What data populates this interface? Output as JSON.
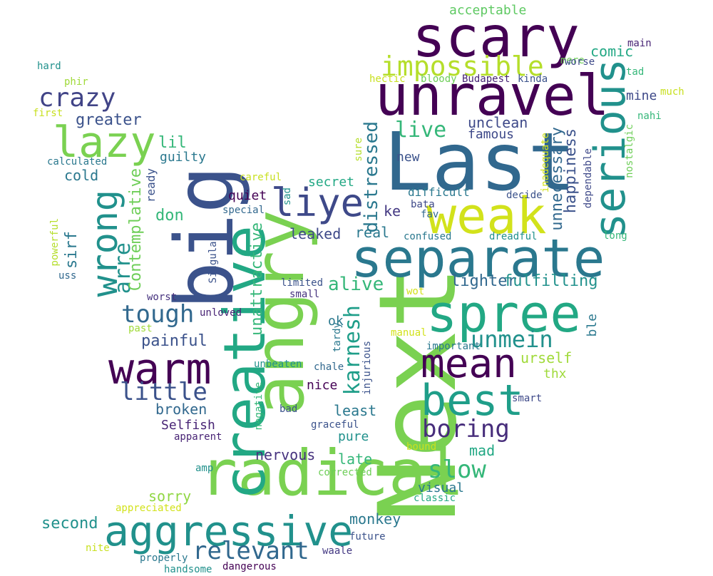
{
  "words": [
    {
      "text": "Next",
      "color": "#7ad151",
      "vertical": true
    },
    {
      "text": "Last",
      "color": "#31688e",
      "vertical": false
    },
    {
      "text": "big",
      "color": "#3b528b",
      "vertical": true
    },
    {
      "text": "angry",
      "color": "#7ad151",
      "vertical": true
    },
    {
      "text": "radical",
      "color": "#7ad151",
      "vertical": false
    },
    {
      "text": "creative",
      "color": "#22a884",
      "vertical": true
    },
    {
      "text": "separate",
      "color": "#2a788e",
      "vertical": false
    },
    {
      "text": "unravel",
      "color": "#440154",
      "vertical": false
    },
    {
      "text": "scary",
      "color": "#440154",
      "vertical": false
    },
    {
      "text": "spree",
      "color": "#22a884",
      "vertical": false
    },
    {
      "text": "weak",
      "color": "#d2e21b",
      "vertical": false
    },
    {
      "text": "serious",
      "color": "#21918c",
      "vertical": true
    },
    {
      "text": "aggressive",
      "color": "#21918c",
      "vertical": false
    },
    {
      "text": "lazy",
      "color": "#7ad151",
      "vertical": false
    },
    {
      "text": "wrong",
      "color": "#21918c",
      "vertical": true
    },
    {
      "text": "warm",
      "color": "#440154",
      "vertical": false
    },
    {
      "text": "mean",
      "color": "#440154",
      "vertical": false
    },
    {
      "text": "best",
      "color": "#1f9e89",
      "vertical": false
    },
    {
      "text": "liye",
      "color": "#3e4989",
      "vertical": false
    },
    {
      "text": "impossible",
      "color": "#b5de2b",
      "vertical": false
    },
    {
      "text": "crazy",
      "color": "#414487",
      "vertical": false
    },
    {
      "text": "boring",
      "color": "#472d7b",
      "vertical": false
    },
    {
      "text": "tough",
      "color": "#31688e",
      "vertical": false
    },
    {
      "text": "relevant",
      "color": "#31688e",
      "vertical": false
    },
    {
      "text": "slow",
      "color": "#35b779",
      "vertical": false
    },
    {
      "text": "unmein",
      "color": "#21918c",
      "vertical": false
    },
    {
      "text": "little",
      "color": "#3b528b",
      "vertical": false
    },
    {
      "text": "live",
      "color": "#35b779",
      "vertical": false
    },
    {
      "text": "alive",
      "color": "#35b779",
      "vertical": false
    },
    {
      "text": "arre",
      "color": "#21918c",
      "vertical": true
    },
    {
      "text": "karnesh",
      "color": "#1f9e89",
      "vertical": true
    },
    {
      "text": "distressed",
      "color": "#2a788e",
      "vertical": true
    },
    {
      "text": "unattractive",
      "color": "#35b779",
      "vertical": true
    },
    {
      "text": "Contemplative",
      "color": "#6ece58",
      "vertical": true
    },
    {
      "text": "happiness",
      "color": "#3b528b",
      "vertical": true
    },
    {
      "text": "unnecessary",
      "color": "#31688e",
      "vertical": true
    },
    {
      "text": "comic",
      "color": "#22a884",
      "vertical": false
    },
    {
      "text": "unclean",
      "color": "#3e4989",
      "vertical": false
    },
    {
      "text": "lighter",
      "color": "#31688e",
      "vertical": false
    },
    {
      "text": "fulfilling",
      "color": "#21918c",
      "vertical": false
    },
    {
      "text": "painful",
      "color": "#3b528b",
      "vertical": false
    },
    {
      "text": "greater",
      "color": "#3b528b",
      "vertical": false
    },
    {
      "text": "leaked",
      "color": "#3e4989",
      "vertical": false
    },
    {
      "text": "real",
      "color": "#2a788e",
      "vertical": false
    },
    {
      "text": "ke",
      "color": "#443983",
      "vertical": false
    },
    {
      "text": "mine",
      "color": "#3e4989",
      "vertical": false
    },
    {
      "text": "sirf",
      "color": "#2a788e",
      "vertical": true
    },
    {
      "text": "second",
      "color": "#21918c",
      "vertical": false
    },
    {
      "text": "least",
      "color": "#2a788e",
      "vertical": false
    },
    {
      "text": "late",
      "color": "#35b779",
      "vertical": false
    },
    {
      "text": "mad",
      "color": "#22a884",
      "vertical": false
    },
    {
      "text": "monkey",
      "color": "#2a788e",
      "vertical": false
    },
    {
      "text": "urself",
      "color": "#a0da39",
      "vertical": false
    },
    {
      "text": "sorry",
      "color": "#90d743",
      "vertical": false
    },
    {
      "text": "famous",
      "color": "#3e4989",
      "vertical": false
    },
    {
      "text": "lil",
      "color": "#35b779",
      "vertical": false
    },
    {
      "text": "cold",
      "color": "#2a788e",
      "vertical": false
    },
    {
      "text": "don",
      "color": "#35b779",
      "vertical": false
    },
    {
      "text": "broken",
      "color": "#31688e",
      "vertical": false
    },
    {
      "text": "nervous",
      "color": "#46327e",
      "vertical": false
    },
    {
      "text": "Selfish",
      "color": "#482475",
      "vertical": false
    },
    {
      "text": "pure",
      "color": "#21918c",
      "vertical": false
    },
    {
      "text": "thx",
      "color": "#9fda3a",
      "vertical": false
    },
    {
      "text": "nice",
      "color": "#440154",
      "vertical": false
    },
    {
      "text": "difficult",
      "color": "#2a788e",
      "vertical": false
    },
    {
      "text": "visual",
      "color": "#2a788e",
      "vertical": false
    },
    {
      "text": "secret",
      "color": "#22a884",
      "vertical": false
    },
    {
      "text": "quiet",
      "color": "#440154",
      "vertical": false
    },
    {
      "text": "guilty",
      "color": "#2a788e",
      "vertical": false
    },
    {
      "text": "new",
      "color": "#3b528b",
      "vertical": false
    },
    {
      "text": "ok",
      "color": "#2a788e",
      "vertical": false
    },
    {
      "text": "acceptable",
      "color": "#5ec962",
      "vertical": false
    },
    {
      "text": "ble",
      "color": "#2a788e",
      "vertical": true
    },
    {
      "text": "ready",
      "color": "#3b528b",
      "vertical": true
    },
    {
      "text": "calculated",
      "color": "#2a788e",
      "vertical": false
    },
    {
      "text": "hard",
      "color": "#21918c",
      "vertical": false
    },
    {
      "text": "phir",
      "color": "#a0da39",
      "vertical": false
    },
    {
      "text": "first",
      "color": "#c8e020",
      "vertical": false
    },
    {
      "text": "careful",
      "color": "#c8e020",
      "vertical": false
    },
    {
      "text": "special",
      "color": "#31688e",
      "vertical": false
    },
    {
      "text": "limited",
      "color": "#3b528b",
      "vertical": false
    },
    {
      "text": "small",
      "color": "#46327e",
      "vertical": false
    },
    {
      "text": "worst",
      "color": "#46327e",
      "vertical": false
    },
    {
      "text": "unloved",
      "color": "#482475",
      "vertical": false
    },
    {
      "text": "past",
      "color": "#a0da39",
      "vertical": false
    },
    {
      "text": "uss",
      "color": "#31688e",
      "vertical": false
    },
    {
      "text": "powerful",
      "color": "#b5de2b",
      "vertical": true
    },
    {
      "text": "Singular",
      "color": "#3b528b",
      "vertical": true
    },
    {
      "text": "sad",
      "color": "#21918c",
      "vertical": true
    },
    {
      "text": "bata",
      "color": "#3e4989",
      "vertical": false
    },
    {
      "text": "fav",
      "color": "#31688e",
      "vertical": false
    },
    {
      "text": "sure",
      "color": "#b5de2b",
      "vertical": true
    },
    {
      "text": "hectic",
      "color": "#c8e020",
      "vertical": false
    },
    {
      "text": "bloody",
      "color": "#6ece58",
      "vertical": false
    },
    {
      "text": "Budapest",
      "color": "#482475",
      "vertical": false
    },
    {
      "text": "kinda",
      "color": "#3b528b",
      "vertical": false
    },
    {
      "text": "mere",
      "color": "#6ece58",
      "vertical": false
    },
    {
      "text": "worse",
      "color": "#3e4989",
      "vertical": false
    },
    {
      "text": "main",
      "color": "#482475",
      "vertical": false
    },
    {
      "text": "tad",
      "color": "#35b779",
      "vertical": false
    },
    {
      "text": "much",
      "color": "#c8e020",
      "vertical": false
    },
    {
      "text": "nahi",
      "color": "#35b779",
      "vertical": false
    },
    {
      "text": "nostalgic",
      "color": "#6ece58",
      "vertical": true
    },
    {
      "text": "inadequate",
      "color": "#d2e21b",
      "vertical": true
    },
    {
      "text": "dependable",
      "color": "#3e4989",
      "vertical": true
    },
    {
      "text": "decide",
      "color": "#3b528b",
      "vertical": false
    },
    {
      "text": "confused",
      "color": "#2a788e",
      "vertical": false
    },
    {
      "text": "dreadful",
      "color": "#21918c",
      "vertical": false
    },
    {
      "text": "long",
      "color": "#35b779",
      "vertical": false
    },
    {
      "text": "wot",
      "color": "#d2e21b",
      "vertical": false
    },
    {
      "text": "manual",
      "color": "#d2e21b",
      "vertical": false
    },
    {
      "text": "important",
      "color": "#2a788e",
      "vertical": false
    },
    {
      "text": "tardy",
      "color": "#2a788e",
      "vertical": true
    },
    {
      "text": "injurious",
      "color": "#3b528b",
      "vertical": true
    },
    {
      "text": "unbeaten",
      "color": "#21918c",
      "vertical": false
    },
    {
      "text": "chale",
      "color": "#31688e",
      "vertical": false
    },
    {
      "text": "negative",
      "color": "#35b779",
      "vertical": true
    },
    {
      "text": "bad",
      "color": "#3b528b",
      "vertical": false
    },
    {
      "text": "graceful",
      "color": "#3b528b",
      "vertical": false
    },
    {
      "text": "smart",
      "color": "#3e4989",
      "vertical": false
    },
    {
      "text": "apparent",
      "color": "#482475",
      "vertical": false
    },
    {
      "text": "bound",
      "color": "#c8e020",
      "vertical": false
    },
    {
      "text": "corrected",
      "color": "#6ece58",
      "vertical": false
    },
    {
      "text": "amp",
      "color": "#21918c",
      "vertical": false
    },
    {
      "text": "classic",
      "color": "#22a884",
      "vertical": false
    },
    {
      "text": "appreciated",
      "color": "#d2e21b",
      "vertical": false
    },
    {
      "text": "future",
      "color": "#3b528b",
      "vertical": false
    },
    {
      "text": "nite",
      "color": "#c8e020",
      "vertical": false
    },
    {
      "text": "properly",
      "color": "#2a788e",
      "vertical": false
    },
    {
      "text": "waale",
      "color": "#443983",
      "vertical": false
    },
    {
      "text": "handsome",
      "color": "#21918c",
      "vertical": false
    },
    {
      "text": "dangerous",
      "color": "#440154",
      "vertical": false
    }
  ]
}
